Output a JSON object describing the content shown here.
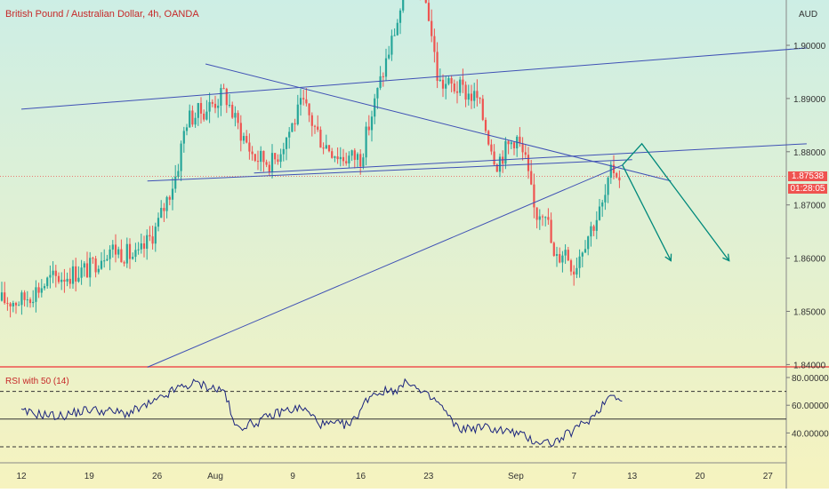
{
  "chart_data": {
    "type": "candlestick",
    "title": "British Pound / Australian Dollar, 4h, OANDA",
    "currency": "AUD",
    "last_price": "1.87538",
    "countdown": "01:28:05",
    "price_ticks": [
      "1.90000",
      "1.89000",
      "1.88000",
      "1.87000",
      "1.86000",
      "1.85000",
      "1.84000"
    ],
    "price_tick_values": [
      1.9,
      1.89,
      1.88,
      1.87,
      1.86,
      1.85,
      1.84
    ],
    "date_ticks": [
      "12",
      "19",
      "26",
      "Aug",
      "9",
      "16",
      "23",
      "Sep",
      "7",
      "13",
      "20",
      "27"
    ],
    "price_path": [
      {
        "date": "Jul 12",
        "price": 1.852
      },
      {
        "date": "Jul 15",
        "price": 1.856
      },
      {
        "date": "Jul 19",
        "price": 1.858
      },
      {
        "date": "Jul 21",
        "price": 1.862
      },
      {
        "date": "Jul 24",
        "price": 1.86
      },
      {
        "date": "Jul 26",
        "price": 1.866
      },
      {
        "date": "Jul 28",
        "price": 1.876
      },
      {
        "date": "Jul 29",
        "price": 1.886
      },
      {
        "date": "Jul 31",
        "price": 1.888
      },
      {
        "date": "Aug 2",
        "price": 1.891
      },
      {
        "date": "Aug 3",
        "price": 1.886
      },
      {
        "date": "Aug 5",
        "price": 1.879
      },
      {
        "date": "Aug 7",
        "price": 1.878
      },
      {
        "date": "Aug 10",
        "price": 1.889
      },
      {
        "date": "Aug 12",
        "price": 1.882
      },
      {
        "date": "Aug 14",
        "price": 1.879
      },
      {
        "date": "Aug 16",
        "price": 1.879
      },
      {
        "date": "Aug 18",
        "price": 1.893
      },
      {
        "date": "Aug 20",
        "price": 1.906
      },
      {
        "date": "Aug 21",
        "price": 1.914
      },
      {
        "date": "Aug 22",
        "price": 1.913
      },
      {
        "date": "Aug 23",
        "price": 1.906
      },
      {
        "date": "Aug 24",
        "price": 1.893
      },
      {
        "date": "Aug 26",
        "price": 1.892
      },
      {
        "date": "Aug 28",
        "price": 1.89
      },
      {
        "date": "Aug 30",
        "price": 1.878
      },
      {
        "date": "Sep 1",
        "price": 1.883
      },
      {
        "date": "Sep 2",
        "price": 1.878
      },
      {
        "date": "Sep 3",
        "price": 1.868
      },
      {
        "date": "Sep 4",
        "price": 1.87
      },
      {
        "date": "Sep 5",
        "price": 1.859
      },
      {
        "date": "Sep 6",
        "price": 1.862
      },
      {
        "date": "Sep 7",
        "price": 1.858
      },
      {
        "date": "Sep 8",
        "price": 1.863
      },
      {
        "date": "Sep 10",
        "price": 1.87
      },
      {
        "date": "Sep 11",
        "price": 1.877
      },
      {
        "date": "Sep 12",
        "price": 1.875
      }
    ],
    "trendlines": [
      {
        "name": "upper-channel",
        "from": {
          "date": "Jul 12",
          "price": 1.888
        },
        "to": {
          "date": "Oct 1",
          "price": 1.8995
        }
      },
      {
        "name": "upper-support",
        "from": {
          "date": "Jul 25",
          "price": 1.8745
        },
        "to": {
          "date": "Sep 13",
          "price": 1.8785
        }
      },
      {
        "name": "lower-support",
        "from": {
          "date": "Aug 5",
          "price": 1.876
        },
        "to": {
          "date": "Oct 1",
          "price": 1.8815
        }
      },
      {
        "name": "descending-resistance",
        "from": {
          "date": "Jul 31",
          "price": 1.8965
        },
        "to": {
          "date": "Sep 17",
          "price": 1.8745
        }
      },
      {
        "name": "rising-support",
        "from": {
          "date": "Jul 25",
          "price": 1.8395
        },
        "to": {
          "date": "Sep 12",
          "price": 1.8775
        }
      }
    ],
    "projection_arrows": [
      {
        "points": [
          {
            "date": "Sep 12",
            "price": 1.8775
          },
          {
            "date": "Sep 14",
            "price": 1.8815
          },
          {
            "date": "Sep 23",
            "price": 1.8595
          }
        ]
      },
      {
        "points": [
          {
            "date": "Sep 12",
            "price": 1.8775
          },
          {
            "date": "Sep 17",
            "price": 1.8595
          }
        ]
      }
    ],
    "rsi": {
      "label": "RSI with 50 (14)",
      "ticks": [
        "80.00000",
        "60.00000",
        "40.00000"
      ],
      "tick_values": [
        80,
        60,
        40
      ],
      "levels": [
        70,
        50,
        30
      ],
      "values": [
        {
          "date": "Jul 12",
          "value": 55
        },
        {
          "date": "Jul 16",
          "value": 52
        },
        {
          "date": "Jul 19",
          "value": 57
        },
        {
          "date": "Jul 23",
          "value": 54
        },
        {
          "date": "Jul 26",
          "value": 63
        },
        {
          "date": "Jul 28",
          "value": 72
        },
        {
          "date": "Jul 30",
          "value": 76
        },
        {
          "date": "Aug 2",
          "value": 70
        },
        {
          "date": "Aug 3",
          "value": 44
        },
        {
          "date": "Aug 5",
          "value": 47
        },
        {
          "date": "Aug 8",
          "value": 56
        },
        {
          "date": "Aug 10",
          "value": 58
        },
        {
          "date": "Aug 12",
          "value": 46
        },
        {
          "date": "Aug 15",
          "value": 46
        },
        {
          "date": "Aug 17",
          "value": 68
        },
        {
          "date": "Aug 20",
          "value": 72
        },
        {
          "date": "Aug 21",
          "value": 78
        },
        {
          "date": "Aug 22",
          "value": 70
        },
        {
          "date": "Aug 24",
          "value": 62
        },
        {
          "date": "Aug 26",
          "value": 43
        },
        {
          "date": "Aug 29",
          "value": 44
        },
        {
          "date": "Sep 1",
          "value": 40
        },
        {
          "date": "Sep 3",
          "value": 34
        },
        {
          "date": "Sep 5",
          "value": 33
        },
        {
          "date": "Sep 7",
          "value": 42
        },
        {
          "date": "Sep 9",
          "value": 52
        },
        {
          "date": "Sep 11",
          "value": 70
        },
        {
          "date": "Sep 12",
          "value": 62
        }
      ]
    },
    "colors": {
      "up": "#26a69a",
      "down": "#ef5350",
      "trendline": "#3f51b5",
      "projection": "#00897b",
      "title": "#c62828",
      "bg_top": "#cdeee5",
      "bg_bottom": "#f6f3bf",
      "divider": "#ef5350"
    }
  }
}
